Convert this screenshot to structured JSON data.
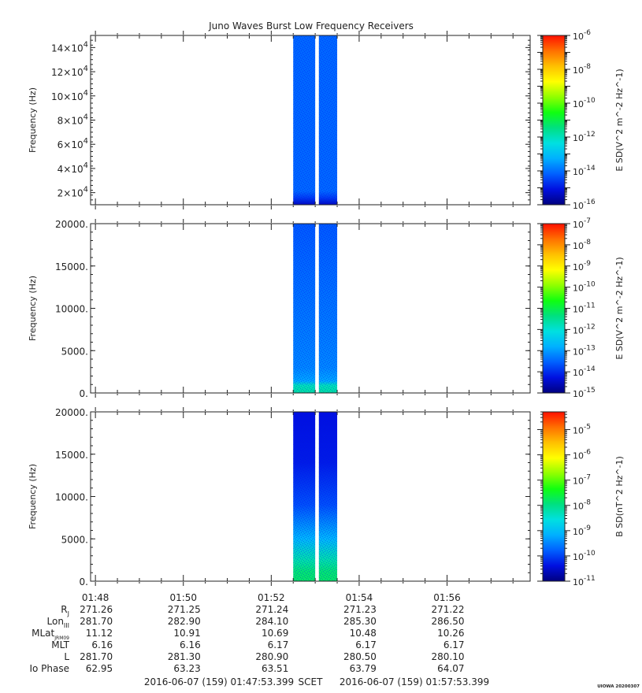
{
  "title": "Juno Waves Burst Low Frequency Receivers",
  "colors": {
    "background": "#ffffff",
    "axis": "#222222",
    "gap": "#ffffff",
    "colormap": [
      "#000080",
      "#0010e0",
      "#0060ff",
      "#00b0ff",
      "#00e0e0",
      "#00e080",
      "#10ff10",
      "#90ff00",
      "#ffff00",
      "#ffc000",
      "#ff7000",
      "#ff1000"
    ]
  },
  "chart_data": [
    {
      "type": "heatmap",
      "ylabel": "Frequency (Hz)",
      "yticks": [
        "2×10^4",
        "4×10^4",
        "6×10^4",
        "8×10^4",
        "10×10^4",
        "12×10^4",
        "14×10^4"
      ],
      "ytick_values": [
        20000,
        40000,
        60000,
        80000,
        100000,
        120000,
        140000
      ],
      "ylim": [
        10000,
        150000
      ],
      "colorbar": {
        "label": "E SD(V^2 m^-2 Hz^-1)",
        "log": true,
        "range_exp": [
          -16,
          -6
        ],
        "tick_exps": [
          -16,
          -14,
          -12,
          -10,
          -8,
          -6
        ],
        "tick_labels": [
          "10^-16",
          "10^-14",
          "10^-12",
          "10^-10",
          "10^-8",
          "10^-6"
        ]
      },
      "data_segments": [
        {
          "start": "01:52:30",
          "end": "01:53:00"
        },
        {
          "start": "01:53:05",
          "end": "01:53:30"
        }
      ],
      "level": "~10^-14 uniform"
    },
    {
      "type": "heatmap",
      "ylabel": "Frequency (Hz)",
      "yticks": [
        "0.",
        "5000.",
        "10000.",
        "15000.",
        "20000."
      ],
      "ytick_values": [
        0,
        5000,
        10000,
        15000,
        20000
      ],
      "ylim": [
        0,
        20000
      ],
      "colorbar": {
        "label": "E SD(V^2 m^-2 Hz^-1)",
        "log": true,
        "range_exp": [
          -15,
          -7
        ],
        "tick_exps": [
          -15,
          -14,
          -13,
          -12,
          -11,
          -10,
          -9,
          -8,
          -7
        ],
        "tick_labels": [
          "10^-15",
          "10^-14",
          "10^-13",
          "10^-12",
          "10^-11",
          "10^-10",
          "10^-9",
          "10^-8",
          "10^-7"
        ]
      },
      "data_segments": [
        {
          "start": "01:52:30",
          "end": "01:53:00"
        },
        {
          "start": "01:53:05",
          "end": "01:53:30"
        }
      ],
      "level": "~10^-13.5; enhanced (~10^-11.5) below ~700 Hz"
    },
    {
      "type": "heatmap",
      "ylabel": "Frequency (Hz)",
      "yticks": [
        "0.",
        "5000.",
        "10000.",
        "15000.",
        "20000."
      ],
      "ytick_values": [
        0,
        5000,
        10000,
        15000,
        20000
      ],
      "ylim": [
        0,
        20000
      ],
      "colorbar": {
        "label": "B SD(nT^2 Hz^-1)",
        "log": true,
        "range_exp": [
          -11,
          -4.3
        ],
        "tick_exps": [
          -11,
          -10,
          -9,
          -8,
          -7,
          -6,
          -5
        ],
        "tick_labels": [
          "10^-11",
          "10^-10",
          "10^-9",
          "10^-8",
          "10^-7",
          "10^-6",
          "10^-5"
        ]
      },
      "data_segments": [
        {
          "start": "01:52:30",
          "end": "01:53:00"
        },
        {
          "start": "01:53:05",
          "end": "01:53:30"
        }
      ],
      "level": "~10^-10.3 at high freq rising to ~10^-8 below ~1500 Hz"
    }
  ],
  "time_axis": {
    "start": "01:47:53.399",
    "end": "01:57:53.399",
    "major_ticks": [
      "01:48",
      "01:50",
      "01:52",
      "01:54",
      "01:56"
    ]
  },
  "ephemeris": {
    "rows": [
      {
        "label": "R",
        "sub": "J",
        "values": [
          "271.26",
          "271.25",
          "271.24",
          "271.23",
          "271.22"
        ]
      },
      {
        "label": "Lon",
        "sub": "III",
        "values": [
          "281.70",
          "282.90",
          "284.10",
          "285.30",
          "286.50"
        ]
      },
      {
        "label": "MLat",
        "sub": "JRM09",
        "values": [
          "11.12",
          "10.91",
          "10.69",
          "10.48",
          "10.26"
        ]
      },
      {
        "label": "MLT",
        "sub": "",
        "values": [
          "6.16",
          "6.16",
          "6.17",
          "6.17",
          "6.17"
        ]
      },
      {
        "label": "L",
        "sub": "",
        "values": [
          "281.70",
          "281.30",
          "280.90",
          "280.50",
          "280.10"
        ]
      },
      {
        "label": "Io Phase",
        "sub": "",
        "values": [
          "62.95",
          "63.23",
          "63.51",
          "63.79",
          "64.07"
        ]
      }
    ]
  },
  "footer": {
    "start_time": "2016-06-07 (159) 01:47:53.399",
    "scet_label": "SCET",
    "end_time": "2016-06-07 (159) 01:57:53.399",
    "credit": "UIOWA 20200307"
  }
}
